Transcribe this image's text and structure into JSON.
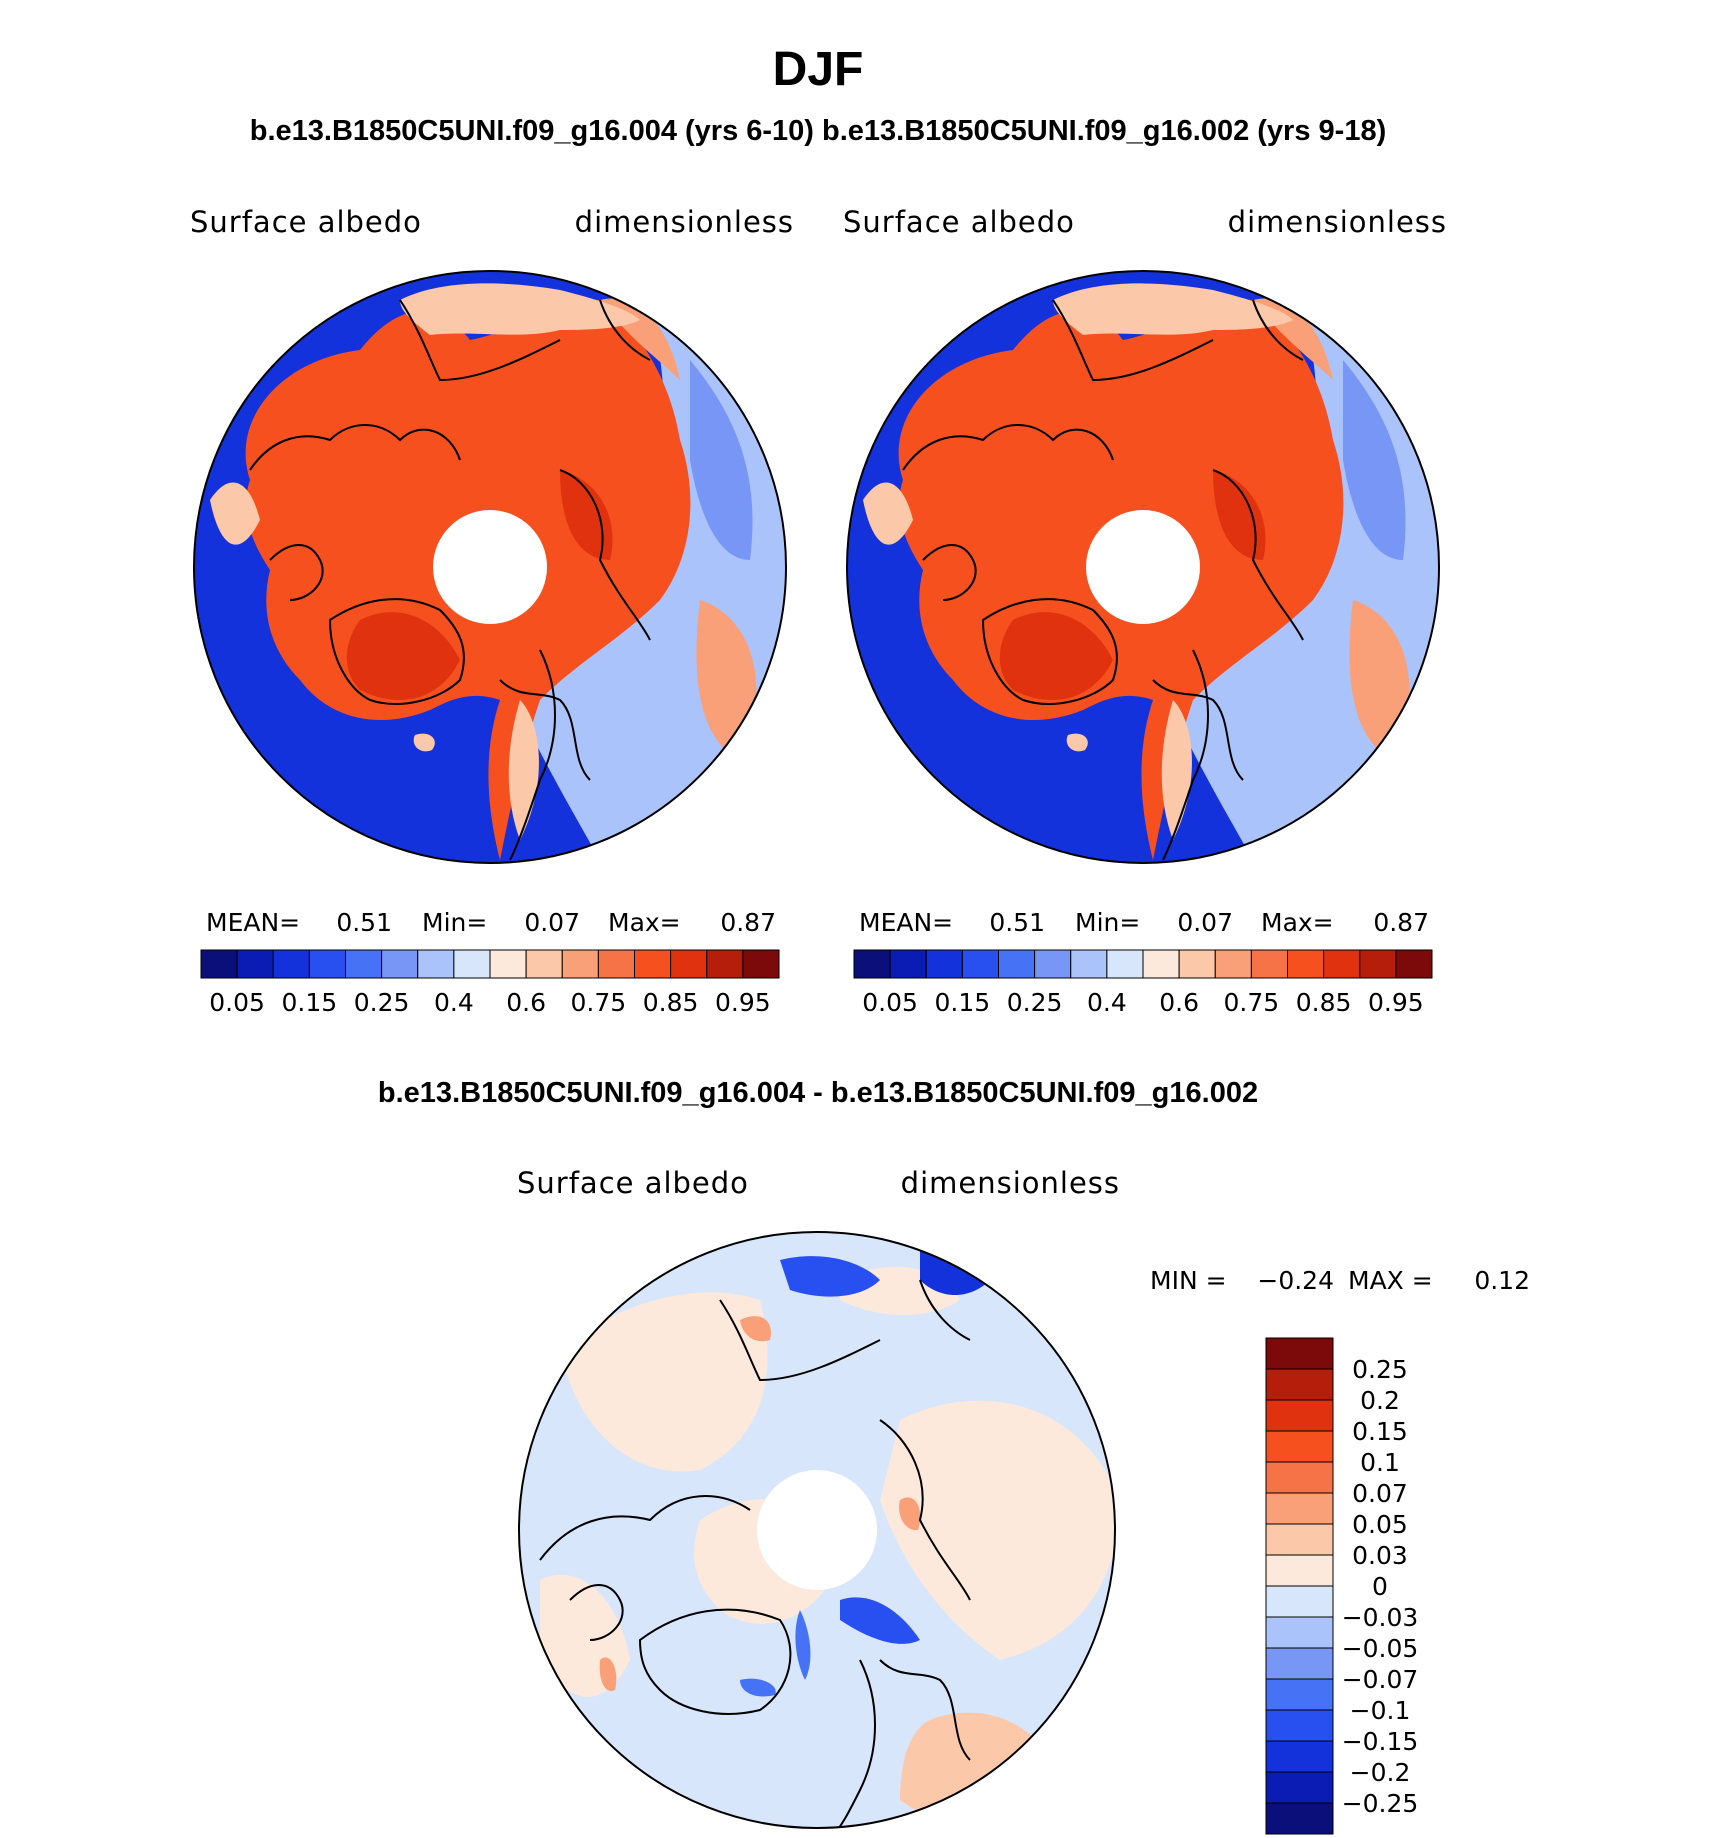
{
  "header": {
    "title": "DJF",
    "subtitle": "b.e13.B1850C5UNI.f09_g16.004 (yrs 6-10) b.e13.B1850C5UNI.f09_g16.002 (yrs 9-18)",
    "diff_title": "b.e13.B1850C5UNI.f09_g16.004 - b.e13.B1850C5UNI.f09_g16.002"
  },
  "panels": [
    {
      "variable": "Surface albedo",
      "units": "dimensionless",
      "mean_label": "MEAN=",
      "mean": "0.51",
      "min_label": "Min=",
      "min": "0.07",
      "max_label": "Max=",
      "max": "0.87"
    },
    {
      "variable": "Surface albedo",
      "units": "dimensionless",
      "mean_label": "MEAN=",
      "mean": "0.51",
      "min_label": "Min=",
      "min": "0.07",
      "max_label": "Max=",
      "max": "0.87"
    }
  ],
  "diff_panel": {
    "variable": "Surface albedo",
    "units": "dimensionless",
    "min_label": "MIN =",
    "min": "−0.24",
    "max_label": "MAX =",
    "max": "0.12"
  },
  "colors": {
    "abs_scale": [
      "#0a0f7a",
      "#0a1cb4",
      "#1432dc",
      "#2850f0",
      "#4673f5",
      "#7896f5",
      "#aac3fa",
      "#d7e6fa",
      "#fce9dc",
      "#fcc8aa",
      "#faa078",
      "#f57346",
      "#f5501e",
      "#e1320f",
      "#b41e0a",
      "#7d0a0a"
    ],
    "diff_scale": [
      "#0a0f7a",
      "#0a1cb4",
      "#1432dc",
      "#2850f0",
      "#4673f5",
      "#7896f5",
      "#aac3fa",
      "#d7e6fa",
      "#fce9dc",
      "#fcc8aa",
      "#faa078",
      "#f57346",
      "#f5501e",
      "#e1320f",
      "#b41e0a",
      "#7d0a0a"
    ],
    "coastline": "#000000"
  },
  "chart_data": [
    {
      "type": "heatmap",
      "projection": "north-polar-stereographic",
      "title": "Surface albedo",
      "units": "dimensionless",
      "colorbar_levels": [
        "0.05",
        "0.15",
        "0.25",
        "0.4",
        "0.6",
        "0.75",
        "0.85",
        "0.95"
      ],
      "mean": 0.51,
      "min": 0.07,
      "max": 0.87
    },
    {
      "type": "heatmap",
      "projection": "north-polar-stereographic",
      "title": "Surface albedo",
      "units": "dimensionless",
      "colorbar_levels": [
        "0.05",
        "0.15",
        "0.25",
        "0.4",
        "0.6",
        "0.75",
        "0.85",
        "0.95"
      ],
      "mean": 0.51,
      "min": 0.07,
      "max": 0.87
    },
    {
      "type": "heatmap",
      "projection": "north-polar-stereographic",
      "title": "Surface albedo",
      "units": "dimensionless",
      "colorbar_levels": [
        "0.25",
        "0.2",
        "0.15",
        "0.1",
        "0.07",
        "0.05",
        "0.03",
        "0",
        "−0.03",
        "−0.05",
        "−0.07",
        "−0.1",
        "−0.15",
        "−0.2",
        "−0.25"
      ],
      "min": -0.24,
      "max": 0.12
    }
  ]
}
